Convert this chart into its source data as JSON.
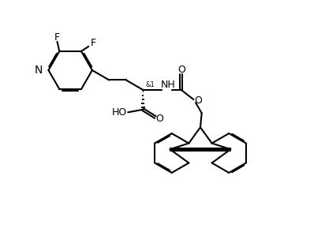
{
  "background": "#ffffff",
  "line_color": "#000000",
  "lw": 1.5,
  "fs": 9,
  "figsize": [
    3.93,
    3.13
  ],
  "dpi": 100,
  "xlim": [
    -0.5,
    10.5
  ],
  "ylim": [
    -0.5,
    8.5
  ]
}
